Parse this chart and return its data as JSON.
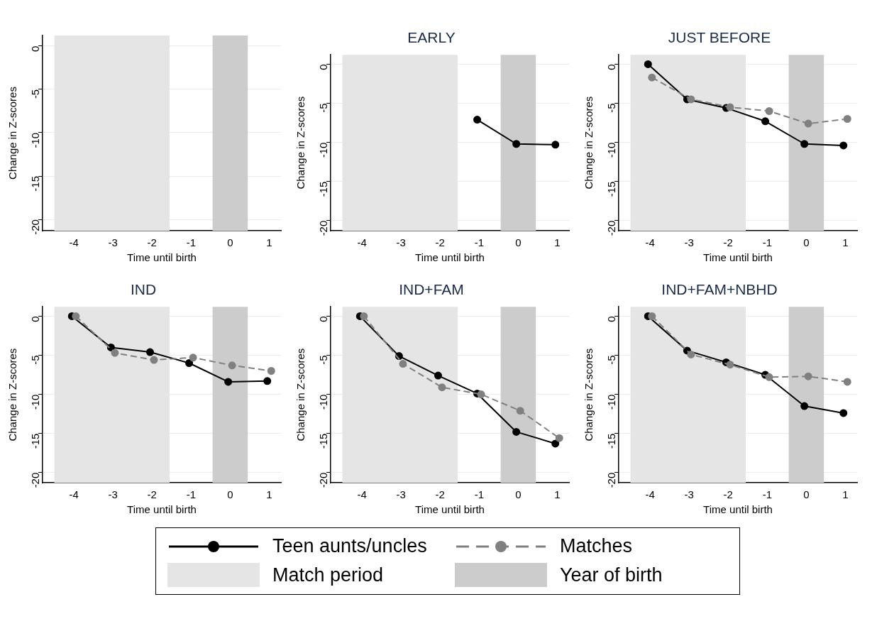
{
  "chart_data": [
    {
      "type": "line",
      "xlabel": "Time until birth",
      "ylabel": "Change in Z-scores",
      "xlim": [
        -4.8,
        1.3
      ],
      "ylim": [
        -21.3,
        1.2
      ],
      "xticks": [
        -4,
        -3,
        -2,
        -1,
        0,
        1
      ],
      "yticks": [
        0,
        -5,
        -10,
        -15,
        -20
      ],
      "grid": "y",
      "bands": [
        {
          "axis": "x",
          "from": -4.5,
          "to": -1.55,
          "color": "#e5e5e5"
        },
        {
          "axis": "x",
          "from": -0.45,
          "to": 0.45,
          "color": "#cccccc"
        }
      ]
    },
    {
      "type": "line",
      "title": "EARLY",
      "xlabel": "Time until birth",
      "ylabel": "Change in Z-scores",
      "xlim": [
        -4.8,
        1.3
      ],
      "ylim": [
        -21.3,
        1.2
      ],
      "xticks": [
        -4,
        -3,
        -2,
        -1,
        0,
        1
      ],
      "yticks": [
        0,
        -5,
        -10,
        -15,
        -20
      ],
      "grid": "y",
      "marker": "circle",
      "bands": [
        {
          "axis": "x",
          "from": -4.5,
          "to": -1.55,
          "color": "#e5e5e5"
        },
        {
          "axis": "x",
          "from": -0.45,
          "to": 0.45,
          "color": "#cccccc"
        }
      ],
      "series": [
        {
          "color": "#000000",
          "line_style": "solid",
          "x": [
            -1.05,
            -0.05,
            0.95
          ],
          "values": [
            -7.1,
            -10.2,
            -10.3
          ]
        }
      ]
    },
    {
      "type": "line",
      "title": "JUST BEFORE",
      "xlabel": "Time until birth",
      "ylabel": "Change in Z-scores",
      "xlim": [
        -4.8,
        1.3
      ],
      "ylim": [
        -21.3,
        1.2
      ],
      "xticks": [
        -4,
        -3,
        -2,
        -1,
        0,
        1
      ],
      "yticks": [
        0,
        -5,
        -10,
        -15,
        -20
      ],
      "grid": "y",
      "marker": "circle",
      "bands": [
        {
          "axis": "x",
          "from": -4.5,
          "to": -1.55,
          "color": "#e5e5e5"
        },
        {
          "axis": "x",
          "from": -0.45,
          "to": 0.45,
          "color": "#cccccc"
        }
      ],
      "series": [
        {
          "color": "#000000",
          "line_style": "solid",
          "x": [
            -4.05,
            -3.05,
            -2.05,
            -1.05,
            -0.05,
            0.95
          ],
          "values": [
            0,
            -4.5,
            -5.6,
            -7.3,
            -10.2,
            -10.4
          ]
        },
        {
          "color": "#808080",
          "line_style": "dashed",
          "x": [
            -3.95,
            -2.95,
            -1.95,
            -0.95,
            0.05,
            1.05
          ],
          "values": [
            -1.7,
            -4.5,
            -5.5,
            -6,
            -7.6,
            -7
          ]
        }
      ]
    },
    {
      "type": "line",
      "title": "IND",
      "xlabel": "Time until birth",
      "ylabel": "Change in Z-scores",
      "xlim": [
        -4.8,
        1.3
      ],
      "ylim": [
        -21.3,
        1.2
      ],
      "xticks": [
        -4,
        -3,
        -2,
        -1,
        0,
        1
      ],
      "yticks": [
        0,
        -5,
        -10,
        -15,
        -20
      ],
      "grid": "y",
      "marker": "circle",
      "bands": [
        {
          "axis": "x",
          "from": -4.5,
          "to": -1.55,
          "color": "#e5e5e5"
        },
        {
          "axis": "x",
          "from": -0.45,
          "to": 0.45,
          "color": "#cccccc"
        }
      ],
      "series": [
        {
          "color": "#000000",
          "line_style": "solid",
          "x": [
            -4.05,
            -3.05,
            -2.05,
            -1.05,
            -0.05,
            0.95
          ],
          "values": [
            0,
            -4,
            -4.6,
            -6,
            -8.4,
            -8.3
          ]
        },
        {
          "color": "#808080",
          "line_style": "dashed",
          "x": [
            -3.95,
            -2.95,
            -1.95,
            -0.95,
            0.05,
            1.05
          ],
          "values": [
            0,
            -4.7,
            -5.6,
            -5.3,
            -6.3,
            -7
          ]
        }
      ]
    },
    {
      "type": "line",
      "title": "IND+FAM",
      "xlabel": "Time until birth",
      "ylabel": "Change in Z-scores",
      "xlim": [
        -4.8,
        1.3
      ],
      "ylim": [
        -21.3,
        1.2
      ],
      "xticks": [
        -4,
        -3,
        -2,
        -1,
        0,
        1
      ],
      "yticks": [
        0,
        -5,
        -10,
        -15,
        -20
      ],
      "grid": "y",
      "marker": "circle",
      "legend": "bottom",
      "bands": [
        {
          "axis": "x",
          "from": -4.5,
          "to": -1.55,
          "label": "Match period",
          "color": "#e5e5e5"
        },
        {
          "axis": "x",
          "from": -0.45,
          "to": 0.45,
          "label": "Year of birth",
          "color": "#cccccc"
        }
      ],
      "series": [
        {
          "name": "Teen aunts/uncles",
          "color": "#000000",
          "line_style": "solid",
          "x": [
            -4.05,
            -3.05,
            -2.05,
            -1.05,
            -0.05,
            0.95
          ],
          "values": [
            0,
            -5.1,
            -7.6,
            -9.9,
            -14.8,
            -16.3
          ]
        },
        {
          "name": "Matches",
          "color": "#808080",
          "line_style": "dashed",
          "x": [
            -3.95,
            -2.95,
            -1.95,
            -0.95,
            0.05,
            1.05
          ],
          "values": [
            0,
            -6.1,
            -9.1,
            -10,
            -12.1,
            -15.6
          ]
        }
      ]
    },
    {
      "type": "line",
      "title": "IND+FAM+NBHD",
      "xlabel": "Time until birth",
      "ylabel": "Change in Z-scores",
      "xlim": [
        -4.8,
        1.3
      ],
      "ylim": [
        -21.3,
        1.2
      ],
      "xticks": [
        -4,
        -3,
        -2,
        -1,
        0,
        1
      ],
      "yticks": [
        0,
        -5,
        -10,
        -15,
        -20
      ],
      "grid": "y",
      "marker": "circle",
      "bands": [
        {
          "axis": "x",
          "from": -4.5,
          "to": -1.55,
          "color": "#e5e5e5"
        },
        {
          "axis": "x",
          "from": -0.45,
          "to": 0.45,
          "color": "#cccccc"
        }
      ],
      "series": [
        {
          "color": "#000000",
          "line_style": "solid",
          "x": [
            -4.05,
            -3.05,
            -2.05,
            -1.05,
            -0.05,
            0.95
          ],
          "values": [
            0,
            -4.4,
            -5.9,
            -7.5,
            -11.5,
            -12.4
          ]
        },
        {
          "color": "#808080",
          "line_style": "dashed",
          "x": [
            -3.95,
            -2.95,
            -1.95,
            -0.95,
            0.05,
            1.05
          ],
          "values": [
            0,
            -4.9,
            -6.2,
            -7.8,
            -7.7,
            -8.4
          ]
        }
      ]
    }
  ]
}
